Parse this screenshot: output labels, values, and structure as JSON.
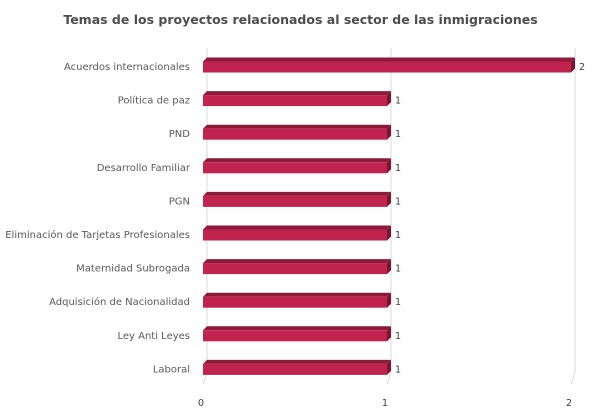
{
  "chart_data": {
    "type": "bar",
    "orientation": "horizontal",
    "title": "Temas de los proyectos relacionados al sector de las inmigraciones",
    "categories": [
      "Acuerdos internacionales",
      "Política de paz",
      "PND",
      "Desarrollo Familiar",
      "PGN",
      "Eliminación de Tarjetas Profesionales",
      "Maternidad Subrogada",
      "Adquisición de Nacionalidad",
      "Ley Anti Leyes",
      "Laboral"
    ],
    "values": [
      2,
      1,
      1,
      1,
      1,
      1,
      1,
      1,
      1,
      1
    ],
    "xlim": [
      0,
      2
    ],
    "xticks": [
      "0",
      "1",
      "2"
    ],
    "grid": true,
    "bar_color": "#c0234e",
    "bar_top_color": "#8e1a3a",
    "bar_side_color": "#7a1532"
  }
}
